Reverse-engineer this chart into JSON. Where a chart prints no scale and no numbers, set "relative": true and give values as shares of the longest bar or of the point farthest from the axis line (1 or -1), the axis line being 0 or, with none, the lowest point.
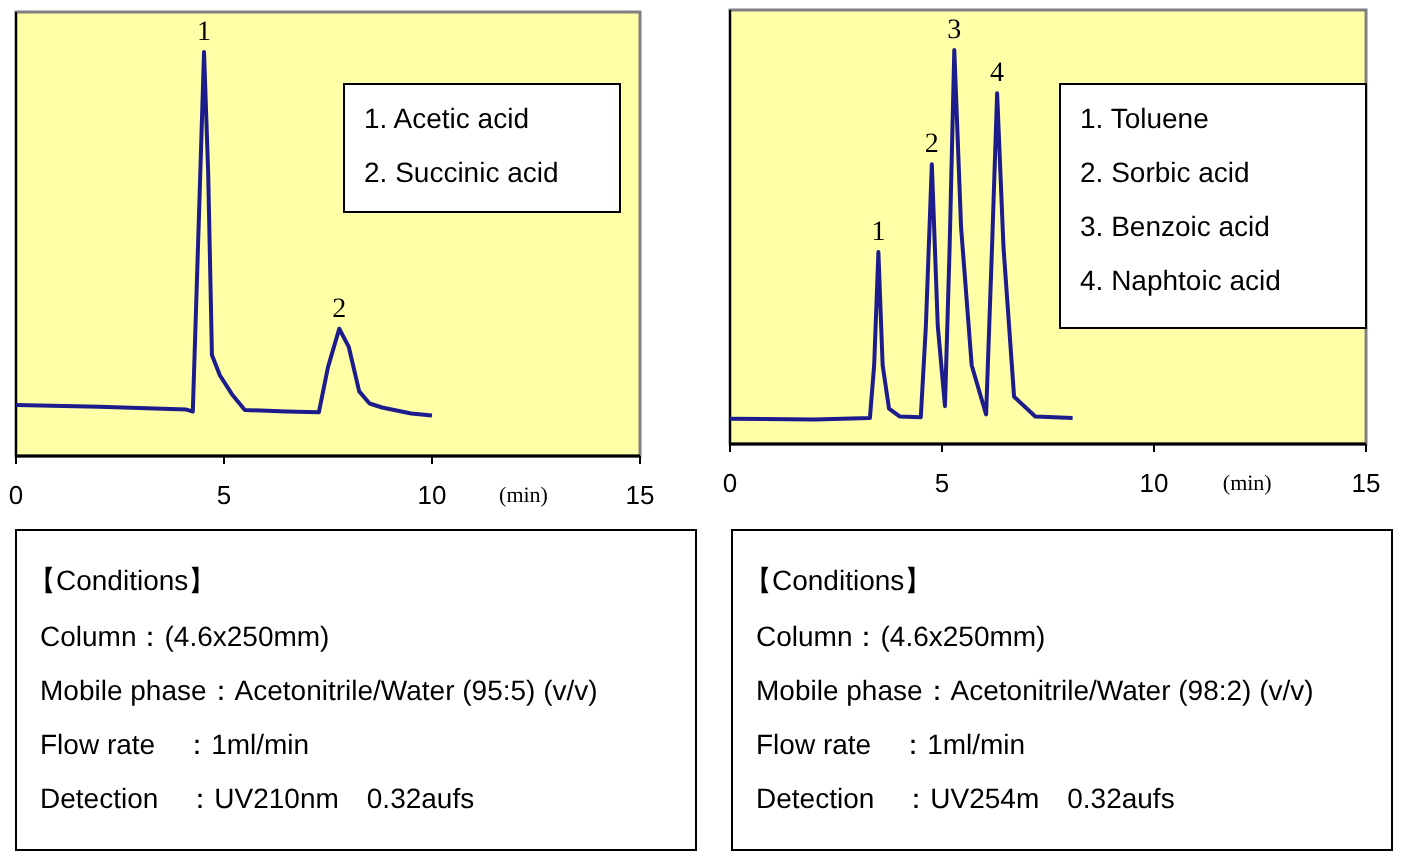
{
  "chart_data": [
    {
      "type": "line",
      "relative": true,
      "xlabel": "(min)",
      "xlim": [
        0,
        15
      ],
      "xticks": [
        0,
        5,
        10,
        15
      ],
      "marker": "none",
      "line_style": "solid",
      "series": [
        {
          "color": "#1c1c8c",
          "x": [
            0,
            2,
            4.1,
            4.25,
            4.4,
            4.52,
            4.62,
            4.71,
            4.9,
            5.19,
            5.5,
            6.5,
            7.28,
            7.5,
            7.77,
            8.0,
            8.25,
            8.5,
            8.8,
            9.5,
            10
          ],
          "values": [
            0.126,
            0.122,
            0.115,
            0.11,
            0.6,
            1,
            0.7,
            0.25,
            0.2,
            0.153,
            0.114,
            0.11,
            0.108,
            0.22,
            0.315,
            0.27,
            0.16,
            0.13,
            0.12,
            0.105,
            0.1
          ]
        }
      ],
      "annotations": [
        {
          "text": "1",
          "x": 4.52,
          "y": 1
        },
        {
          "text": "2",
          "x": 7.77,
          "y": 0.315
        },
        "1. Acetic acid",
        "2. Succinic acid"
      ]
    },
    {
      "type": "line",
      "relative": true,
      "xlabel": "(min)",
      "xlim": [
        0,
        15
      ],
      "xticks": [
        0,
        5,
        10,
        15
      ],
      "marker": "none",
      "line_style": "solid",
      "series": [
        {
          "color": "#1c1c8c",
          "x": [
            0,
            2,
            3.3,
            3.4,
            3.5,
            3.6,
            3.75,
            4.0,
            4.5,
            4.62,
            4.76,
            4.9,
            5.07,
            5.18,
            5.29,
            5.45,
            5.7,
            6.04,
            6.18,
            6.3,
            6.45,
            6.7,
            7.2,
            8.08
          ],
          "values": [
            0.064,
            0.062,
            0.066,
            0.2,
            0.487,
            0.2,
            0.09,
            0.07,
            0.068,
            0.3,
            0.71,
            0.3,
            0.096,
            0.5,
            1,
            0.55,
            0.2,
            0.075,
            0.5,
            0.89,
            0.5,
            0.12,
            0.07,
            0.066
          ]
        }
      ],
      "annotations": [
        {
          "text": "1",
          "x": 3.5,
          "y": 0.487
        },
        {
          "text": "2",
          "x": 4.76,
          "y": 0.71
        },
        {
          "text": "3",
          "x": 5.29,
          "y": 1
        },
        {
          "text": "4",
          "x": 6.3,
          "y": 0.89
        },
        "1. Toluene",
        "2. Sorbic acid",
        "3. Benzoic acid",
        "4. Naphtoic acid"
      ]
    },
    {
      "type": "other",
      "title": "【Conditions】",
      "annotations": [
        "Column：(4.6x250mm)",
        "Mobile phase：Acetonitrile/Water (95:5) (v/v)",
        "Flow rate　：1ml/min",
        "Detection　：UV210nm　0.32aufs"
      ]
    },
    {
      "type": "other",
      "title": "【Conditions】",
      "annotations": [
        "Column：(4.6x250mm)",
        "Mobile phase：Acetonitrile/Water (98:2) (v/v)",
        "Flow rate　：1ml/min",
        "Detection　：UV254m　0.32aufs"
      ]
    }
  ]
}
